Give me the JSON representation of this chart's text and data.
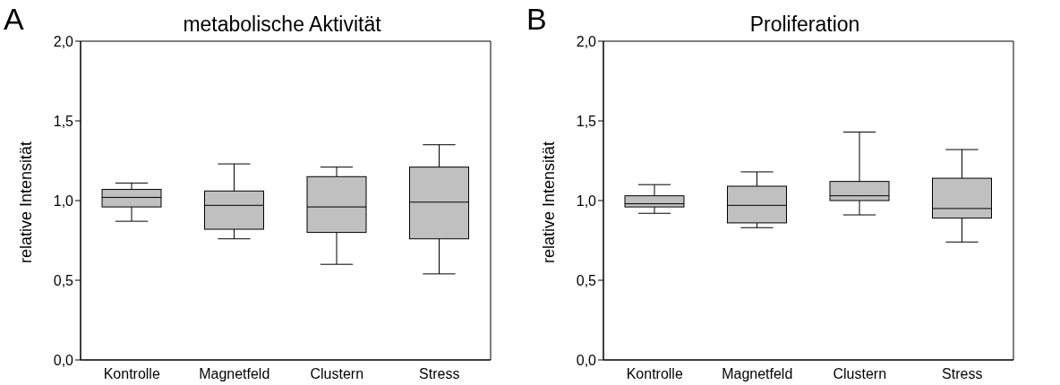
{
  "chart_data": [
    {
      "type": "box",
      "title": "metabolische Aktivität",
      "ylabel": "relative Intensität",
      "annotations": [
        "A"
      ],
      "categories": [
        "Kontrolle",
        "Magnetfeld",
        "Clustern",
        "Stress"
      ],
      "color": "#c0c0c0",
      "ylim": [
        0,
        2
      ],
      "yticks": [
        {
          "value": 0,
          "label": "0,0"
        },
        {
          "value": 0.5,
          "label": "0,5"
        },
        {
          "value": 1,
          "label": "1,0"
        },
        {
          "value": 1.5,
          "label": "1,5"
        },
        {
          "value": 2,
          "label": "2,0"
        }
      ],
      "grid": false,
      "boxes": [
        {
          "low": 0.87,
          "q1": 0.96,
          "median": 1.02,
          "q3": 1.07,
          "high": 1.11
        },
        {
          "low": 0.76,
          "q1": 0.82,
          "median": 0.97,
          "q3": 1.06,
          "high": 1.23
        },
        {
          "low": 0.6,
          "q1": 0.8,
          "median": 0.96,
          "q3": 1.15,
          "high": 1.21
        },
        {
          "low": 0.54,
          "q1": 0.76,
          "median": 0.99,
          "q3": 1.21,
          "high": 1.35
        }
      ]
    },
    {
      "type": "box",
      "title": "Proliferation",
      "ylabel": "relative Intensität",
      "annotations": [
        "B"
      ],
      "categories": [
        "Kontrolle",
        "Magnetfeld",
        "Clustern",
        "Stress"
      ],
      "color": "#c0c0c0",
      "ylim": [
        0,
        2
      ],
      "yticks": [
        {
          "value": 0,
          "label": "0,0"
        },
        {
          "value": 0.5,
          "label": "0,5"
        },
        {
          "value": 1,
          "label": "1,0"
        },
        {
          "value": 1.5,
          "label": "1,5"
        },
        {
          "value": 2,
          "label": "2,0"
        }
      ],
      "grid": false,
      "boxes": [
        {
          "low": 0.92,
          "q1": 0.96,
          "median": 0.98,
          "q3": 1.03,
          "high": 1.1
        },
        {
          "low": 0.83,
          "q1": 0.86,
          "median": 0.97,
          "q3": 1.09,
          "high": 1.18
        },
        {
          "low": 0.91,
          "q1": 1.0,
          "median": 1.03,
          "q3": 1.12,
          "high": 1.43
        },
        {
          "low": 0.74,
          "q1": 0.89,
          "median": 0.95,
          "q3": 1.14,
          "high": 1.32
        }
      ]
    }
  ]
}
